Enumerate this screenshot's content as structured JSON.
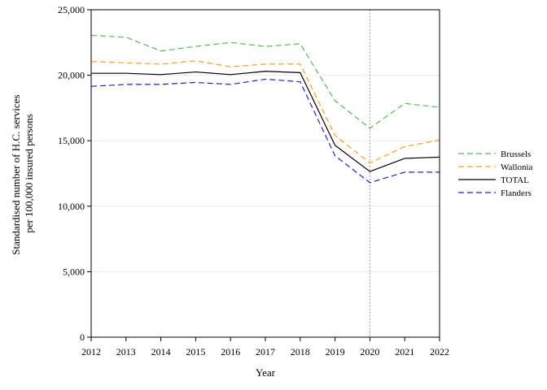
{
  "chart_data": {
    "type": "line",
    "title": "",
    "xlabel": "Year",
    "ylabel_lines": [
      "Standardised number of H.C. services",
      "per 100,000 insured persons"
    ],
    "x": [
      2012,
      2013,
      2014,
      2015,
      2016,
      2017,
      2018,
      2019,
      2020,
      2021,
      2022
    ],
    "x_tick_labels": [
      "2012",
      "2013",
      "2014",
      "2015",
      "2016",
      "2017",
      "2018",
      "2019",
      "2020",
      "2021",
      "2022"
    ],
    "ylim": [
      0,
      25000
    ],
    "y_ticks": [
      0,
      5000,
      10000,
      15000,
      20000,
      25000
    ],
    "y_tick_labels": [
      "0",
      "5,000",
      "10,000",
      "15,000",
      "20,000",
      "25,000"
    ],
    "grid": "horizontal",
    "legend_position": "right",
    "reference_line": {
      "x": 2020,
      "style": "dotted",
      "color": "#b07090"
    },
    "series": [
      {
        "name": "Brussels",
        "color": "#55bb55",
        "dash": "dashed",
        "values": [
          23050,
          22900,
          21850,
          22200,
          22500,
          22200,
          22400,
          18050,
          15950,
          17850,
          17550
        ]
      },
      {
        "name": "Wallonia",
        "color": "#ffa020",
        "dash": "dashed",
        "values": [
          21050,
          20950,
          20850,
          21100,
          20650,
          20850,
          20850,
          15400,
          13300,
          14550,
          15050
        ]
      },
      {
        "name": "TOTAL",
        "color": "#000000",
        "dash": "solid",
        "values": [
          20150,
          20150,
          20050,
          20250,
          20050,
          20300,
          20200,
          14650,
          12650,
          13650,
          13750
        ]
      },
      {
        "name": "Flanders",
        "color": "#2222dd",
        "dash": "dashed",
        "values": [
          19150,
          19300,
          19300,
          19450,
          19300,
          19700,
          19500,
          13850,
          11800,
          12600,
          12600
        ]
      }
    ]
  }
}
